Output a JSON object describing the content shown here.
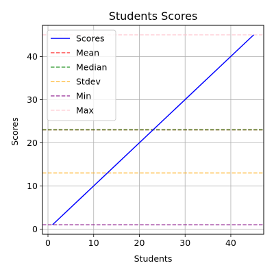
{
  "chart_data": {
    "type": "line",
    "title": "Students Scores",
    "xlabel": "Students",
    "ylabel": "Scores",
    "xlim": [
      -1.2,
      47.2
    ],
    "ylim": [
      -1.2,
      47.2
    ],
    "xticks": [
      0,
      10,
      20,
      30,
      40
    ],
    "yticks": [
      0,
      10,
      20,
      30,
      40
    ],
    "grid": true,
    "legend_position": "upper-left",
    "series": [
      {
        "name": "Scores",
        "kind": "line",
        "style": "solid",
        "color": "#0000ff",
        "x": [
          1,
          45
        ],
        "y": [
          1,
          45
        ]
      }
    ],
    "reference_lines": [
      {
        "name": "Mean",
        "value": 23,
        "color": "#ff0000",
        "alpha": 0.7
      },
      {
        "name": "Median",
        "value": 23,
        "color": "#008000",
        "alpha": 0.7
      },
      {
        "name": "Stdev",
        "value": 13,
        "color": "#ffa500",
        "alpha": 0.7
      },
      {
        "name": "Min",
        "value": 1,
        "color": "#800080",
        "alpha": 0.7
      },
      {
        "name": "Max",
        "value": 45,
        "color": "#ffc0cb",
        "alpha": 0.7
      }
    ]
  }
}
